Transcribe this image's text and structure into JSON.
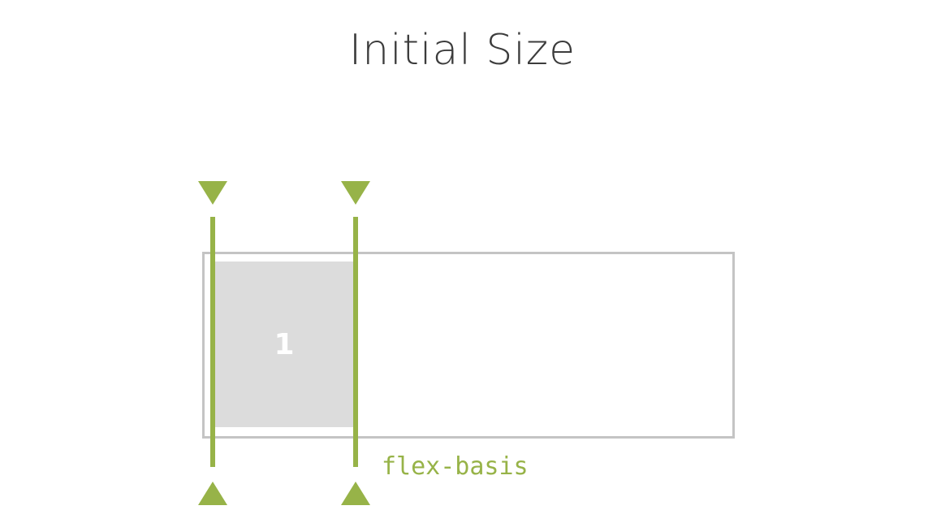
{
  "title": "Initial Size",
  "item": {
    "label": "1"
  },
  "annotation": {
    "label": "flex-basis"
  },
  "colors": {
    "accent": "#97b348",
    "container_border": "#c4c4c4",
    "item_fill": "#dcdcdc",
    "title_text": "#3c3c3c"
  }
}
